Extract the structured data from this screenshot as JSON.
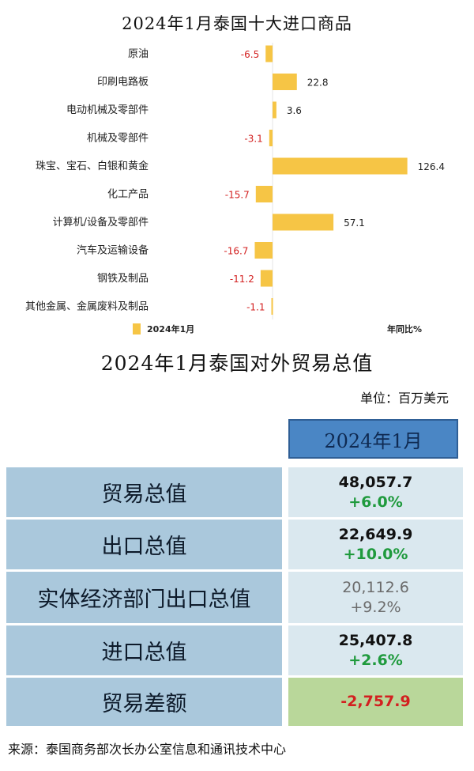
{
  "chart_data": {
    "type": "bar",
    "orientation": "horizontal",
    "title": "2024年1月泰国十大进口商品",
    "categories": [
      "原油",
      "印刷电路板",
      "电动机械及零部件",
      "机械及零部件",
      "珠宝、宝石、白银和黄金",
      "化工产品",
      "计算机/设备及零部件",
      "汽车及运输设备",
      "钢铁及制品",
      "其他金属、金属废料及制品"
    ],
    "series": [
      {
        "name": "2024年1月",
        "values": [
          -6.5,
          22.8,
          3.6,
          -3.1,
          126.4,
          -15.7,
          57.1,
          -16.7,
          -11.2,
          -1.1
        ]
      }
    ],
    "value_labels": [
      "-6.5",
      "22.8",
      "3.6",
      "-3.1",
      "126.4",
      "-15.7",
      "57.1",
      "-16.7",
      "-11.2",
      "-1.1"
    ],
    "xlabel": "年同比%",
    "legend": "bottom-left",
    "bar_color": "#f6c545",
    "negative_label_color": "#d32020",
    "positive_label_color": "#222222"
  },
  "trade": {
    "title": "2024年1月泰国对外贸易总值",
    "unit": "单位：百万美元",
    "period": "2024年1月",
    "rows": [
      {
        "label": "贸易总值",
        "value": "48,057.7",
        "growth": "+6.0%"
      },
      {
        "label": "出口总值",
        "value": "22,649.9",
        "growth": "+10.0%"
      },
      {
        "label": "实体经济部门出口总值",
        "value": "20,112.6",
        "growth": "+9.2%"
      },
      {
        "label": "进口总值",
        "value": "25,407.8",
        "growth": "+2.6%"
      },
      {
        "label": "贸易差额",
        "value": "-2,757.9"
      }
    ]
  },
  "source": "来源：泰国商务部次长办公室信息和通讯技术中心"
}
